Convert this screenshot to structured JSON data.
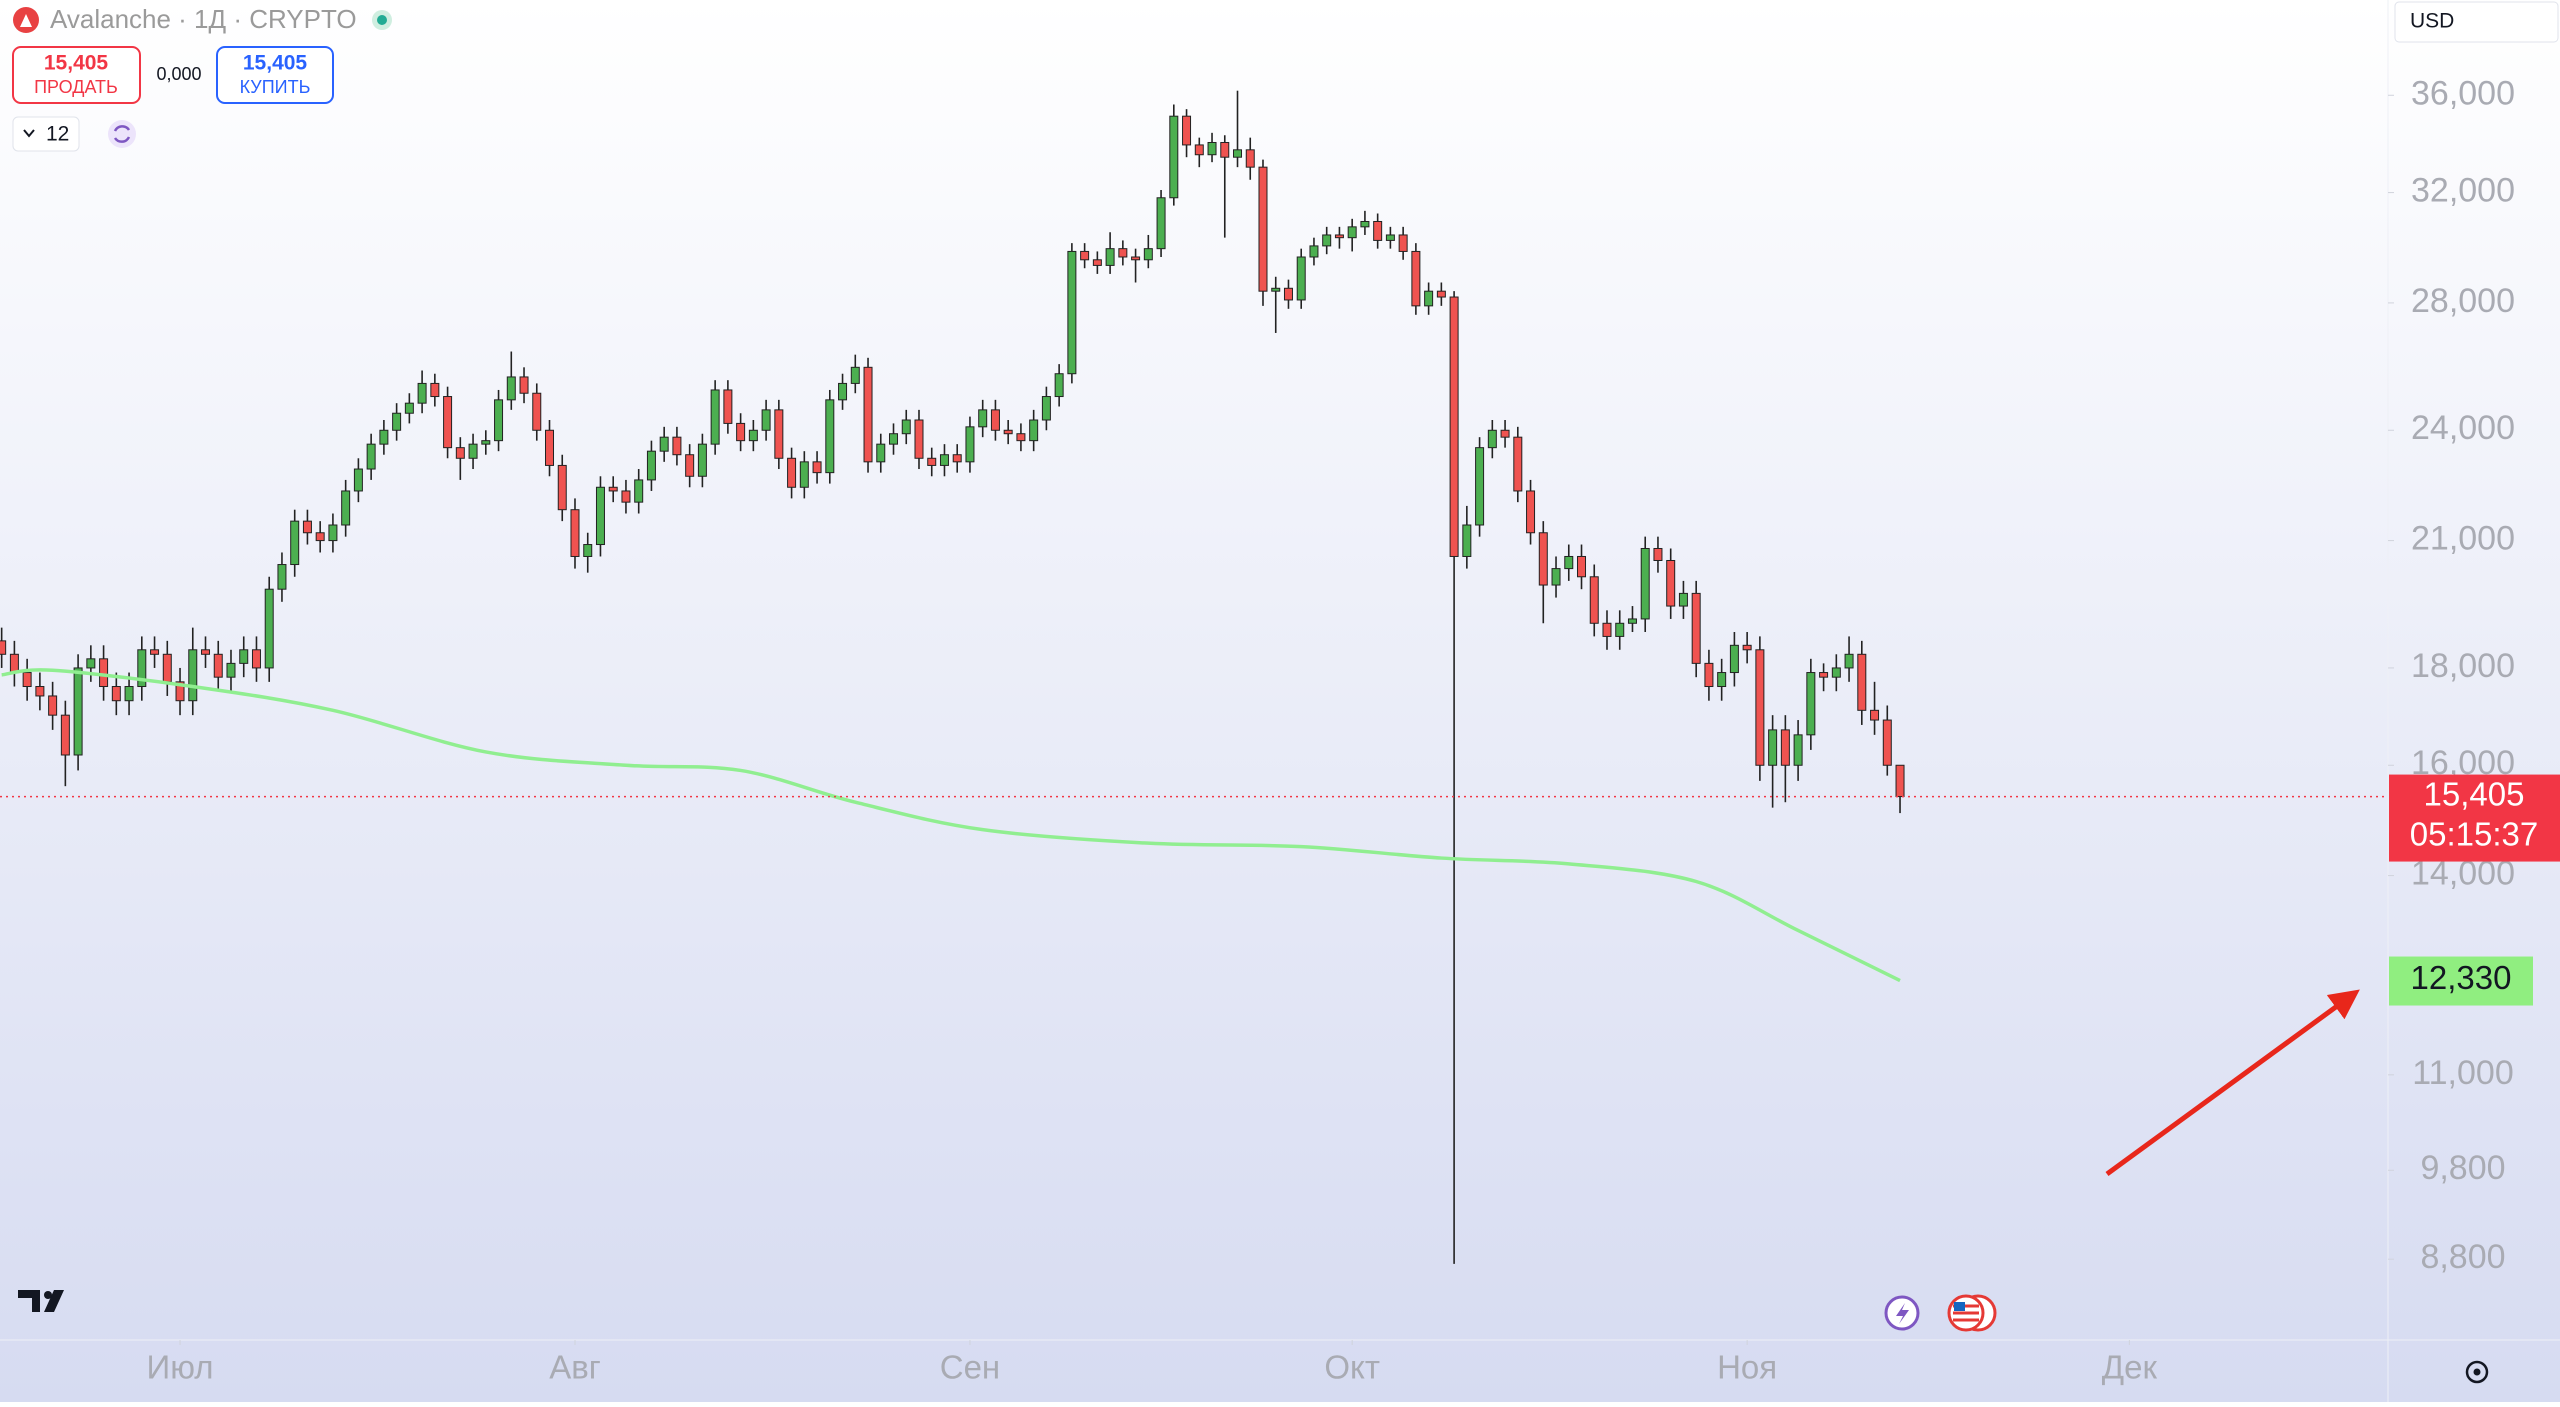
{
  "header": {
    "symbol": "Avalanche · 1Д · CRYPTO",
    "sell_price": "15,405",
    "sell_label": "ПРОДАТЬ",
    "spread": "0,000",
    "buy_price": "15,405",
    "buy_label": "КУПИТЬ",
    "interval_count": "12",
    "currency": "USD"
  },
  "chart_data": {
    "type": "candlestick",
    "yscale": "log",
    "up_color": "#4caf50",
    "down_color": "#ef5350",
    "wick_color": "#222222",
    "xlim": [
      -0.13,
      187.3
    ],
    "xticks": [
      {
        "value": 14,
        "label": "Июл"
      },
      {
        "value": 45,
        "label": "Авг"
      },
      {
        "value": 76,
        "label": "Сен"
      },
      {
        "value": 106,
        "label": "Окт"
      },
      {
        "value": 137,
        "label": "Ноя"
      },
      {
        "value": 167,
        "label": "Дек"
      }
    ],
    "ylim": [
      7.98,
      40.4
    ],
    "yticks": [
      {
        "value": 8.8,
        "label": "8,800"
      },
      {
        "value": 9.8,
        "label": "9,800"
      },
      {
        "value": 11,
        "label": "11,000"
      },
      {
        "value": 14,
        "label": "14,000"
      },
      {
        "value": 16,
        "label": "16,000"
      },
      {
        "value": 18,
        "label": "18,000"
      },
      {
        "value": 21,
        "label": "21,000"
      },
      {
        "value": 24,
        "label": "24,000"
      },
      {
        "value": 28,
        "label": "28,000"
      },
      {
        "value": 32,
        "label": "32,000"
      },
      {
        "value": 36,
        "label": "36,000"
      }
    ],
    "open": [
      18.6,
      18.3,
      17.9,
      17.6,
      17.4,
      17.0,
      16.2,
      18.0,
      18.2,
      17.6,
      17.3,
      17.6,
      18.4,
      18.3,
      17.7,
      17.3,
      18.4,
      18.3,
      17.8,
      18.1,
      18.4,
      18.0,
      19.8,
      20.4,
      21.5,
      21.2,
      21.0,
      21.4,
      22.3,
      22.9,
      23.6,
      24.0,
      24.5,
      24.8,
      25.4,
      25.0,
      23.5,
      23.2,
      23.6,
      23.7,
      24.9,
      25.6,
      25.1,
      24.0,
      23.0,
      21.8,
      20.6,
      20.9,
      22.4,
      22.3,
      22.0,
      22.6,
      23.4,
      23.8,
      23.3,
      22.7,
      23.6,
      25.2,
      24.2,
      23.7,
      24.0,
      24.6,
      23.2,
      22.4,
      23.1,
      22.8,
      24.9,
      25.4,
      25.9,
      23.1,
      23.6,
      23.9,
      24.3,
      23.2,
      23.0,
      23.3,
      23.1,
      24.1,
      24.6,
      24.0,
      23.9,
      23.7,
      24.3,
      25.0,
      25.7,
      29.8,
      29.5,
      29.3,
      29.9,
      29.6,
      29.5,
      29.9,
      31.8,
      35.1,
      33.9,
      33.5,
      34.0,
      33.4,
      33.7,
      33.0,
      28.4,
      28.5,
      28.1,
      29.6,
      30.0,
      30.4,
      30.3,
      30.7,
      30.9,
      30.2,
      30.4,
      29.8,
      27.9,
      28.4,
      28.2,
      20.6,
      21.4,
      23.5,
      24.0,
      23.8,
      22.3,
      21.2,
      19.9,
      20.3,
      20.6,
      20.1,
      19.0,
      18.7,
      19.0,
      19.1,
      20.8,
      20.5,
      19.4,
      19.7,
      18.1,
      17.6,
      17.9,
      18.5,
      18.4,
      16.0,
      16.7,
      16.0,
      16.6,
      17.9,
      17.8,
      18.0,
      18.3,
      17.1,
      16.9,
      16.0
    ],
    "high": [
      18.9,
      18.6,
      18.2,
      17.9,
      17.7,
      17.3,
      18.3,
      18.5,
      18.5,
      17.9,
      17.9,
      18.7,
      18.7,
      18.6,
      18.0,
      18.9,
      18.7,
      18.6,
      18.4,
      18.7,
      18.7,
      20.1,
      20.7,
      21.8,
      21.8,
      21.5,
      21.7,
      22.6,
      23.2,
      23.9,
      24.3,
      24.8,
      25.1,
      25.8,
      25.7,
      25.3,
      23.8,
      23.9,
      24.0,
      25.2,
      26.4,
      25.9,
      25.4,
      24.3,
      23.3,
      22.1,
      21.2,
      22.7,
      22.7,
      22.6,
      22.9,
      23.7,
      24.1,
      24.1,
      23.6,
      23.9,
      25.5,
      25.5,
      24.5,
      24.3,
      24.9,
      24.9,
      23.5,
      23.4,
      23.4,
      25.2,
      25.7,
      26.3,
      26.2,
      23.9,
      24.2,
      24.6,
      24.6,
      23.5,
      23.6,
      23.6,
      24.4,
      24.9,
      24.9,
      24.3,
      24.2,
      24.6,
      25.3,
      26.0,
      30.1,
      30.1,
      29.8,
      30.5,
      30.2,
      29.9,
      30.4,
      32.1,
      35.6,
      35.4,
      34.2,
      34.4,
      34.3,
      36.2,
      34.2,
      33.3,
      28.9,
      28.8,
      29.9,
      30.3,
      30.7,
      30.7,
      31.0,
      31.3,
      31.2,
      30.7,
      30.7,
      30.1,
      28.7,
      28.7,
      28.4,
      21.9,
      23.8,
      24.3,
      24.3,
      24.1,
      22.6,
      21.5,
      20.6,
      20.9,
      20.9,
      20.4,
      19.3,
      19.3,
      19.4,
      21.1,
      21.1,
      20.8,
      20.0,
      20.0,
      18.4,
      18.2,
      18.8,
      18.8,
      18.7,
      17.0,
      17.0,
      16.9,
      18.2,
      18.1,
      18.3,
      18.7,
      18.6,
      17.7,
      17.2,
      16.0
    ],
    "low": [
      18.0,
      17.6,
      17.3,
      17.1,
      16.7,
      15.6,
      15.9,
      17.7,
      17.3,
      17.0,
      17.0,
      17.3,
      18.0,
      17.4,
      17.0,
      17.0,
      18.0,
      17.5,
      17.5,
      17.8,
      17.7,
      17.7,
      19.5,
      20.1,
      20.9,
      20.7,
      20.7,
      21.1,
      22.0,
      22.6,
      23.3,
      23.7,
      24.2,
      24.5,
      24.7,
      23.2,
      22.6,
      22.9,
      23.3,
      23.4,
      24.6,
      24.8,
      23.7,
      22.7,
      21.5,
      20.3,
      20.2,
      20.6,
      22.0,
      21.7,
      21.7,
      22.3,
      23.1,
      23.0,
      22.4,
      22.4,
      23.3,
      23.9,
      23.4,
      23.4,
      23.7,
      22.9,
      22.1,
      22.1,
      22.5,
      22.5,
      24.6,
      25.1,
      22.8,
      22.8,
      23.3,
      23.6,
      22.9,
      22.7,
      22.7,
      22.8,
      22.8,
      23.8,
      23.7,
      23.6,
      23.4,
      23.4,
      24.0,
      24.7,
      25.4,
      29.2,
      29.0,
      29.0,
      29.3,
      28.7,
      29.2,
      29.6,
      31.5,
      33.4,
      33.0,
      33.2,
      30.3,
      33.0,
      32.5,
      27.9,
      27.0,
      27.8,
      27.8,
      29.3,
      29.7,
      29.9,
      29.8,
      30.4,
      29.9,
      29.9,
      29.5,
      27.6,
      27.6,
      27.9,
      8.75,
      20.3,
      21.1,
      23.2,
      23.5,
      22.0,
      20.9,
      19.0,
      19.6,
      20.0,
      19.8,
      18.7,
      18.4,
      18.4,
      18.8,
      18.8,
      20.2,
      19.1,
      19.1,
      17.8,
      17.3,
      17.3,
      17.6,
      18.1,
      15.7,
      15.2,
      15.3,
      15.7,
      16.3,
      17.5,
      17.5,
      17.7,
      16.8,
      16.6,
      15.8,
      15.1
    ],
    "close": [
      18.3,
      17.9,
      17.6,
      17.4,
      17.0,
      16.2,
      18.0,
      18.2,
      17.6,
      17.3,
      17.6,
      18.4,
      18.3,
      17.7,
      17.3,
      18.4,
      18.3,
      17.8,
      18.1,
      18.4,
      18.0,
      19.8,
      20.4,
      21.5,
      21.2,
      21.0,
      21.4,
      22.3,
      22.9,
      23.6,
      24.0,
      24.5,
      24.8,
      25.4,
      25.0,
      23.5,
      23.2,
      23.6,
      23.7,
      24.9,
      25.6,
      25.1,
      24.0,
      23.0,
      21.8,
      20.6,
      20.9,
      22.4,
      22.3,
      22.0,
      22.6,
      23.4,
      23.8,
      23.3,
      22.7,
      23.6,
      25.2,
      24.2,
      23.7,
      24.0,
      24.6,
      23.2,
      22.4,
      23.1,
      22.8,
      24.9,
      25.4,
      25.9,
      23.1,
      23.6,
      23.9,
      24.3,
      23.2,
      23.0,
      23.3,
      23.1,
      24.1,
      24.6,
      24.0,
      23.9,
      23.7,
      24.3,
      25.0,
      25.7,
      29.8,
      29.5,
      29.3,
      29.9,
      29.6,
      29.5,
      29.9,
      31.8,
      35.1,
      33.9,
      33.5,
      34.0,
      33.4,
      33.7,
      33.0,
      28.4,
      28.5,
      28.1,
      29.6,
      30.0,
      30.4,
      30.3,
      30.7,
      30.9,
      30.2,
      30.4,
      29.8,
      27.9,
      28.4,
      28.2,
      20.6,
      21.4,
      23.5,
      24.0,
      23.8,
      22.3,
      21.2,
      19.9,
      20.3,
      20.6,
      20.1,
      19.0,
      18.7,
      19.0,
      19.1,
      20.8,
      20.5,
      19.4,
      19.7,
      18.1,
      17.6,
      17.9,
      18.5,
      18.4,
      16.0,
      16.7,
      16.0,
      16.6,
      17.9,
      17.8,
      18.0,
      18.3,
      17.1,
      16.9,
      16.0,
      15.405
    ],
    "ma": {
      "color": "#90ee90",
      "x": [
        0,
        4,
        15,
        26,
        38,
        49,
        58,
        67,
        77,
        90,
        102,
        113,
        123,
        133,
        141,
        149
      ],
      "values": [
        17.85,
        17.95,
        17.6,
        17.1,
        16.26,
        16.0,
        15.9,
        15.3,
        14.8,
        14.56,
        14.5,
        14.3,
        14.2,
        13.9,
        13.1,
        12.33
      ]
    },
    "last_price": {
      "value": 15.405,
      "label": "15,405",
      "countdown": "05:15:37",
      "color": "#f23645"
    },
    "ma_last": {
      "value": 12.33,
      "label": "12,330",
      "color": "#90ee80"
    }
  }
}
